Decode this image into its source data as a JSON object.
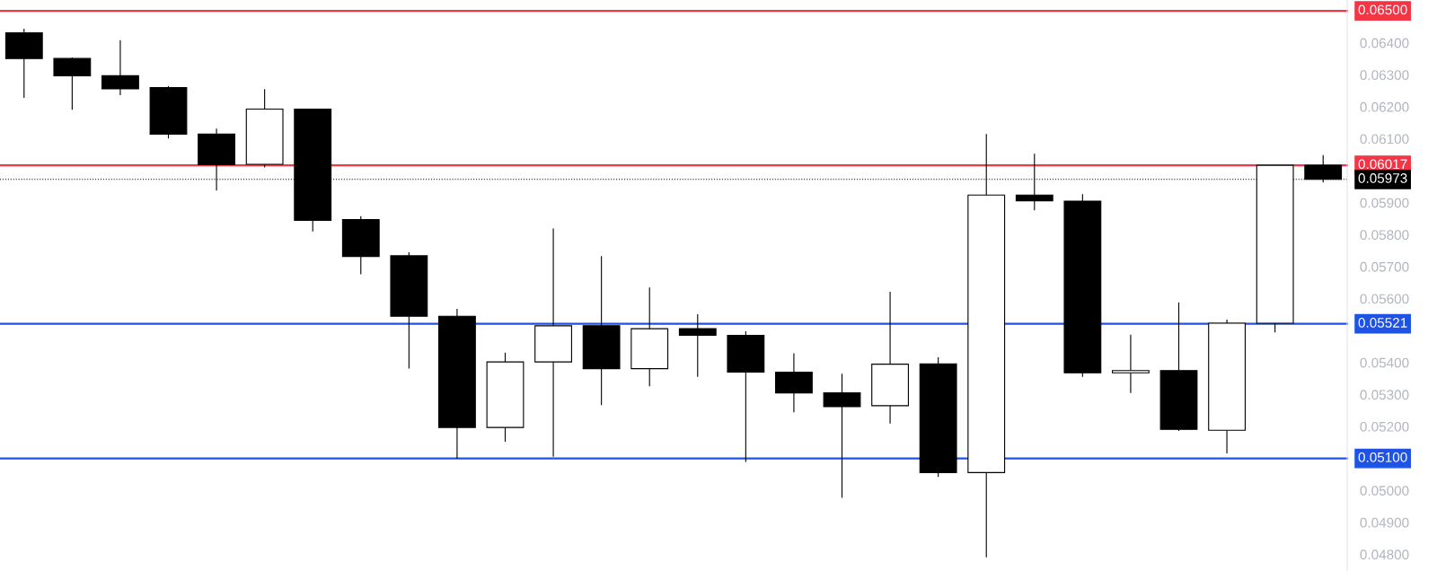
{
  "chart_data": {
    "type": "candlestick",
    "categories": [
      null,
      null,
      null,
      null,
      null,
      null,
      null,
      null,
      null,
      null,
      null,
      null,
      null,
      null,
      null,
      null,
      null,
      null,
      null,
      null,
      null,
      null,
      null,
      null,
      null,
      null,
      null,
      null
    ],
    "ohlc": [
      [
        0.06431,
        0.06444,
        0.06228,
        0.06351
      ],
      [
        0.06351,
        0.06354,
        0.06191,
        0.06297
      ],
      [
        0.06297,
        0.06408,
        0.06236,
        0.06256
      ],
      [
        0.0626,
        0.06265,
        0.06101,
        0.06114
      ],
      [
        0.06115,
        0.06132,
        0.05938,
        0.06019
      ],
      [
        0.0602,
        0.06255,
        0.0601,
        0.06193
      ],
      [
        0.06193,
        0.06193,
        0.0581,
        0.05845
      ],
      [
        0.05847,
        0.05858,
        0.05676,
        0.05732
      ],
      [
        0.05734,
        0.05745,
        0.05381,
        0.05545
      ],
      [
        0.05545,
        0.05568,
        0.051,
        0.05197
      ],
      [
        0.05197,
        0.05431,
        0.05152,
        0.05402
      ],
      [
        0.05402,
        0.05819,
        0.05105,
        0.05515
      ],
      [
        0.05515,
        0.05733,
        0.05267,
        0.05381
      ],
      [
        0.05381,
        0.05635,
        0.05326,
        0.05506
      ],
      [
        0.05506,
        0.05551,
        0.05355,
        0.05485
      ],
      [
        0.05485,
        0.05498,
        0.05089,
        0.0537
      ],
      [
        0.0537,
        0.05429,
        0.05244,
        0.05305
      ],
      [
        0.05305,
        0.05365,
        0.04977,
        0.05262
      ],
      [
        0.05265,
        0.05621,
        0.05209,
        0.05395
      ],
      [
        0.05396,
        0.05416,
        0.05042,
        0.05056
      ],
      [
        0.05056,
        0.06115,
        0.04791,
        0.05924
      ],
      [
        0.05924,
        0.06053,
        0.05876,
        0.05906
      ],
      [
        0.05905,
        0.05927,
        0.05355,
        0.05368
      ],
      [
        0.05368,
        0.05487,
        0.05305,
        0.05375
      ],
      [
        0.05375,
        0.05588,
        0.05186,
        0.05191
      ],
      [
        0.05188,
        0.05534,
        0.05116,
        0.05523
      ],
      [
        0.05523,
        0.06017,
        0.05494,
        0.06017
      ],
      [
        0.06017,
        0.06049,
        0.05963,
        0.05973
      ]
    ],
    "colors": [
      "#000000",
      "#000000",
      "#000000",
      "#000000",
      "#000000",
      "#ffffff",
      "#000000",
      "#000000",
      "#000000",
      "#000000",
      "#ffffff",
      "#ffffff",
      "#000000",
      "#ffffff",
      "#000000",
      "#000000",
      "#000000",
      "#000000",
      "#ffffff",
      "#000000",
      "#ffffff",
      "#000000",
      "#000000",
      "#ffffff",
      "#000000",
      "#ffffff",
      "#ffffff",
      "#000000"
    ],
    "ylim": [
      0.04748,
      0.06534
    ],
    "yticks": [
      {
        "value": 0.048,
        "label": "0.04800"
      },
      {
        "value": 0.049,
        "label": "0.04900"
      },
      {
        "value": 0.05,
        "label": "0.05000"
      },
      {
        "value": 0.052,
        "label": "0.05200"
      },
      {
        "value": 0.053,
        "label": "0.05300"
      },
      {
        "value": 0.054,
        "label": "0.05400"
      },
      {
        "value": 0.056,
        "label": "0.05600"
      },
      {
        "value": 0.057,
        "label": "0.05700"
      },
      {
        "value": 0.058,
        "label": "0.05800"
      },
      {
        "value": 0.059,
        "label": "0.05900"
      },
      {
        "value": 0.061,
        "label": "0.06100"
      },
      {
        "value": 0.062,
        "label": "0.06200"
      },
      {
        "value": 0.063,
        "label": "0.06300"
      },
      {
        "value": 0.064,
        "label": "0.06400"
      }
    ],
    "ref_lines": [
      {
        "axis": "y",
        "value": 0.065,
        "label": "0.06500",
        "color": "#f23645"
      },
      {
        "axis": "y",
        "value": 0.06017,
        "label": "0.06017",
        "color": "#f23645"
      },
      {
        "axis": "y",
        "value": 0.05973,
        "label": "0.05973",
        "color": "#000000",
        "line_style": "dotted"
      },
      {
        "axis": "y",
        "value": 0.05521,
        "label": "0.05521",
        "color": "#1e53e5"
      },
      {
        "axis": "y",
        "value": 0.051,
        "label": "0.05100",
        "color": "#1e53e5"
      }
    ],
    "tick_labels": "y",
    "grid": false,
    "legend": false
  }
}
